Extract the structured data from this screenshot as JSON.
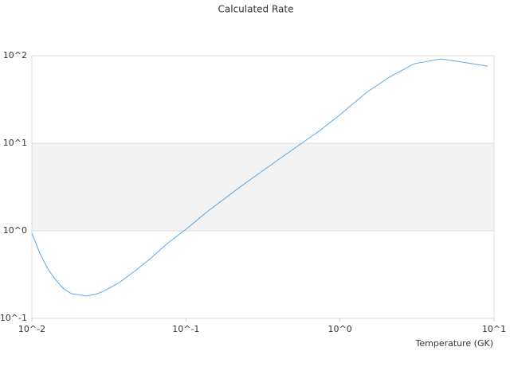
{
  "chart_data": {
    "type": "line",
    "title": "Calculated Rate",
    "x_label": "Temperature (GK)",
    "x": [
      0.01,
      0.01126,
      0.0127,
      0.0143,
      0.0161,
      0.0181,
      0.0225,
      0.0259,
      0.0292,
      0.037,
      0.047,
      0.0596,
      0.0756,
      0.1,
      0.1373,
      0.221,
      0.402,
      0.728,
      1.0,
      1.49,
      2.13,
      3.04,
      4.5,
      6.2,
      9.1
    ],
    "series": [
      {
        "color": "#5ea8e8",
        "values": [
          0.94,
          0.556,
          0.366,
          0.273,
          0.217,
          0.191,
          0.18,
          0.188,
          0.204,
          0.257,
          0.351,
          0.491,
          0.716,
          1.04,
          1.65,
          3.1,
          6.58,
          13.7,
          21.2,
          38.2,
          58,
          81,
          92,
          84.5,
          76
        ]
      }
    ],
    "xlim": [
      0.01,
      10
    ],
    "ylim": [
      0.1,
      100
    ],
    "xlog": true,
    "ylog": true,
    "xticks": [
      {
        "value": 0.01,
        "label": "10^-2"
      },
      {
        "value": 0.1,
        "label": "10^-1"
      },
      {
        "value": 1,
        "label": "10^0"
      },
      {
        "value": 10,
        "label": "10^1"
      }
    ],
    "yticks": [
      {
        "value": 0.1,
        "label": "10^-1"
      },
      {
        "value": 1,
        "label": "10^0"
      },
      {
        "value": 10,
        "label": "10^1"
      },
      {
        "value": 100,
        "label": "10^2"
      }
    ],
    "grid": "bands"
  }
}
